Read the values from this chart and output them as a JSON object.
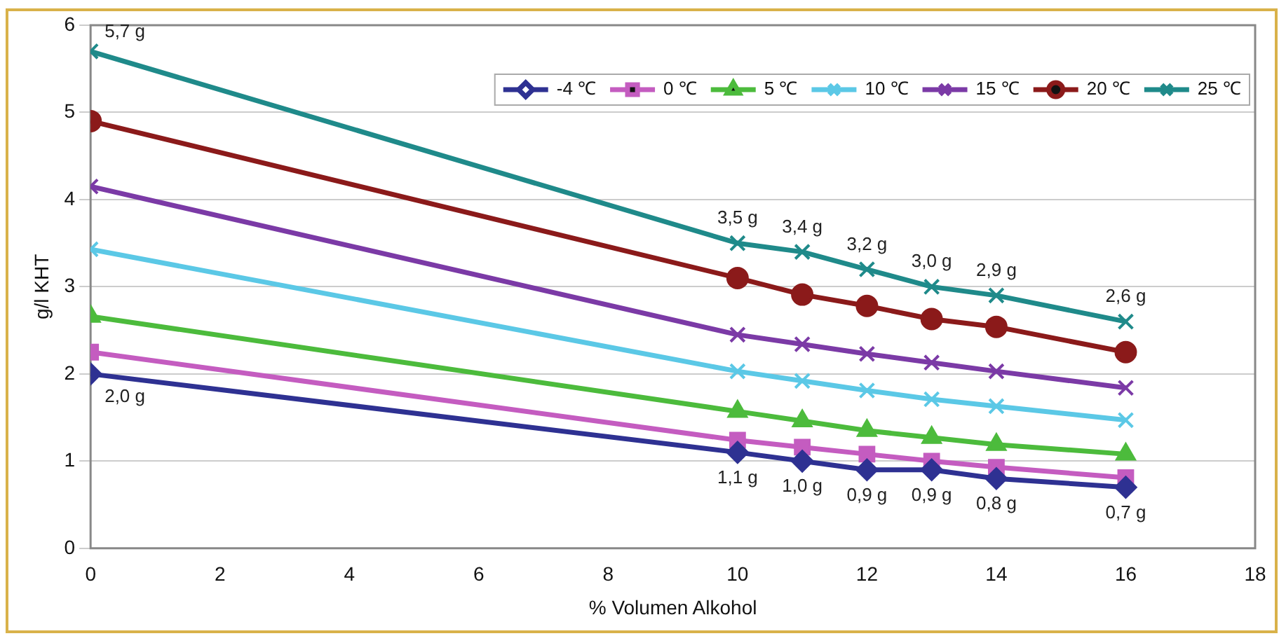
{
  "chart_data": {
    "type": "line",
    "xlabel": "% Volumen Alkohol",
    "ylabel": "g/l KHT",
    "x": [
      0,
      10,
      11,
      12,
      13,
      14,
      16
    ],
    "series": [
      {
        "name": "-4 ℃",
        "color": "#2e3192",
        "marker": "diamond",
        "values": [
          2.0,
          1.1,
          1.0,
          0.9,
          0.9,
          0.8,
          0.7
        ],
        "value_labels": [
          "2,0 g",
          "1,1 g",
          "1,0 g",
          "0,9 g",
          "0,9 g",
          "0,8 g",
          "0,7 g"
        ]
      },
      {
        "name": "0 ℃",
        "color": "#c45cc0",
        "marker": "square",
        "values": [
          2.25,
          1.24,
          1.16,
          1.08,
          1.0,
          0.93,
          0.81
        ]
      },
      {
        "name": "5 ℃",
        "color": "#4cbb3c",
        "marker": "triangle",
        "values": [
          2.66,
          1.57,
          1.46,
          1.35,
          1.27,
          1.19,
          1.08
        ]
      },
      {
        "name": "10 ℃",
        "color": "#5bc8e6",
        "marker": "cross",
        "values": [
          3.43,
          2.03,
          1.92,
          1.81,
          1.71,
          1.63,
          1.47
        ]
      },
      {
        "name": "15 ℃",
        "color": "#7b3aa6",
        "marker": "cross",
        "values": [
          4.15,
          2.45,
          2.34,
          2.23,
          2.13,
          2.03,
          1.84
        ]
      },
      {
        "name": "20 ℃",
        "color": "#8b1a1a",
        "marker": "circle",
        "values": [
          4.9,
          3.1,
          2.91,
          2.78,
          2.63,
          2.54,
          2.25
        ]
      },
      {
        "name": "25 ℃",
        "color": "#1f8a8a",
        "marker": "cross",
        "values": [
          5.7,
          3.5,
          3.4,
          3.2,
          3.0,
          2.9,
          2.6
        ],
        "value_labels": [
          "5,7 g",
          "3,5 g",
          "3,4 g",
          "3,2 g",
          "3,0 g",
          "2,9 g",
          "2,6 g"
        ]
      }
    ],
    "xlim": [
      0,
      18
    ],
    "xticks": [
      0,
      2,
      4,
      6,
      8,
      10,
      12,
      14,
      16,
      18
    ],
    "ylim": [
      0,
      6
    ],
    "yticks": [
      0,
      1,
      2,
      3,
      4,
      5,
      6
    ],
    "grid": "y",
    "legend": "top right",
    "line_style": "solid"
  }
}
